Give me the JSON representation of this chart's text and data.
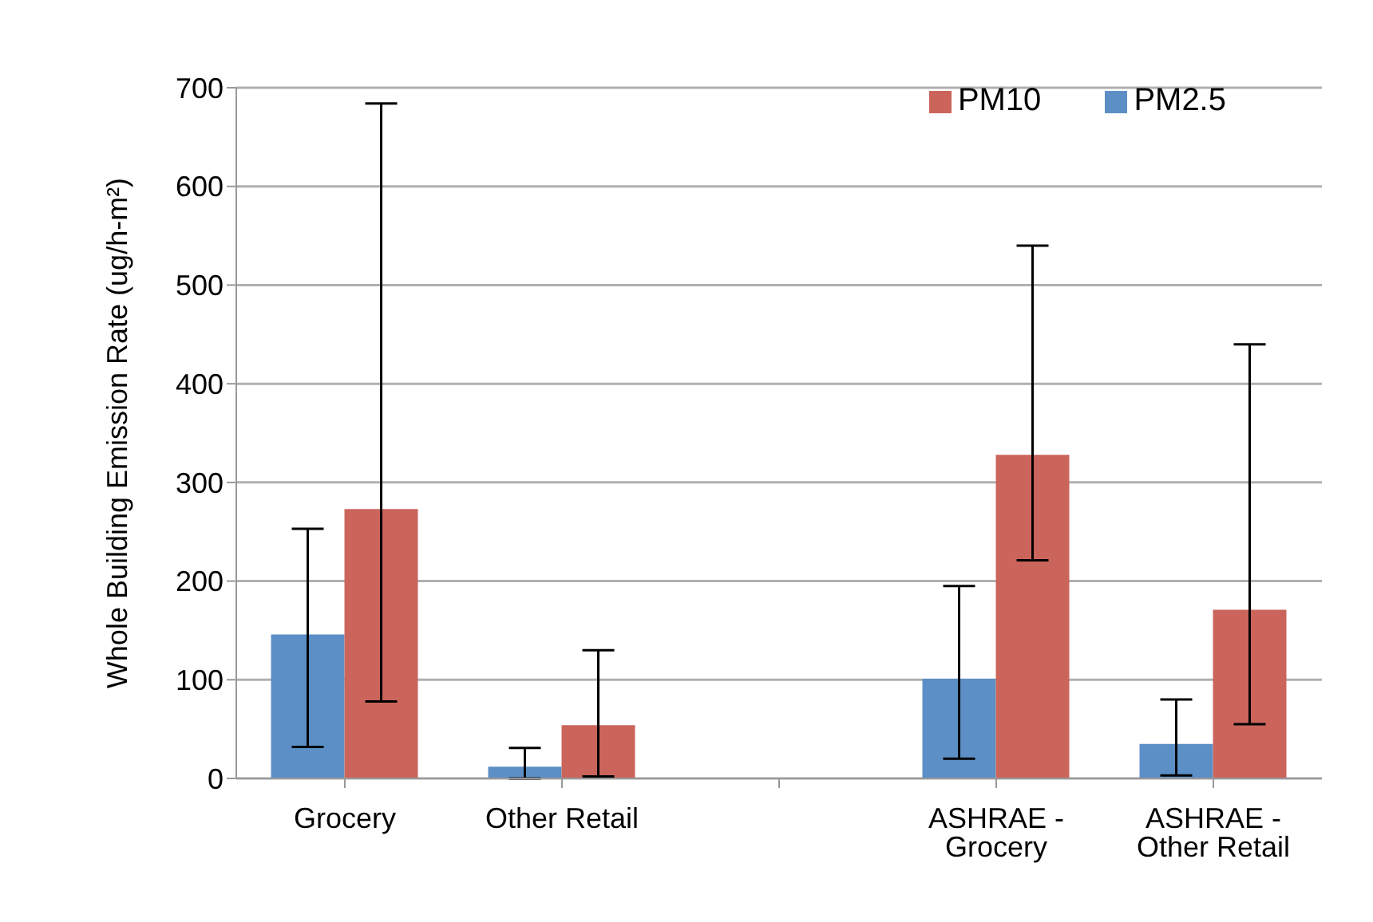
{
  "chart_data": {
    "type": "bar",
    "ylabel": "Whole Building Emission Rate (ug/h-m²)",
    "categories": [
      "Grocery",
      "Other Retail",
      null,
      "ASHRAE - Grocery",
      "ASHRAE - Other Retail"
    ],
    "series": [
      {
        "name": "PM2.5",
        "color": "#5b8fc6",
        "values": [
          146,
          12,
          null,
          101,
          35
        ],
        "errors": [
          [
            32,
            253
          ],
          [
            0,
            31
          ],
          null,
          [
            20,
            195
          ],
          [
            3,
            80
          ]
        ]
      },
      {
        "name": "PM10",
        "color": "#cb655c",
        "values": [
          273,
          54,
          null,
          328,
          171
        ],
        "errors": [
          [
            78,
            684
          ],
          [
            2,
            130
          ],
          null,
          [
            221,
            540
          ],
          [
            55,
            440
          ]
        ]
      }
    ],
    "ylim": [
      0,
      700
    ],
    "yticks": [
      0,
      100,
      200,
      300,
      400,
      500,
      600,
      700
    ],
    "grid": "y",
    "legend": "top right"
  }
}
